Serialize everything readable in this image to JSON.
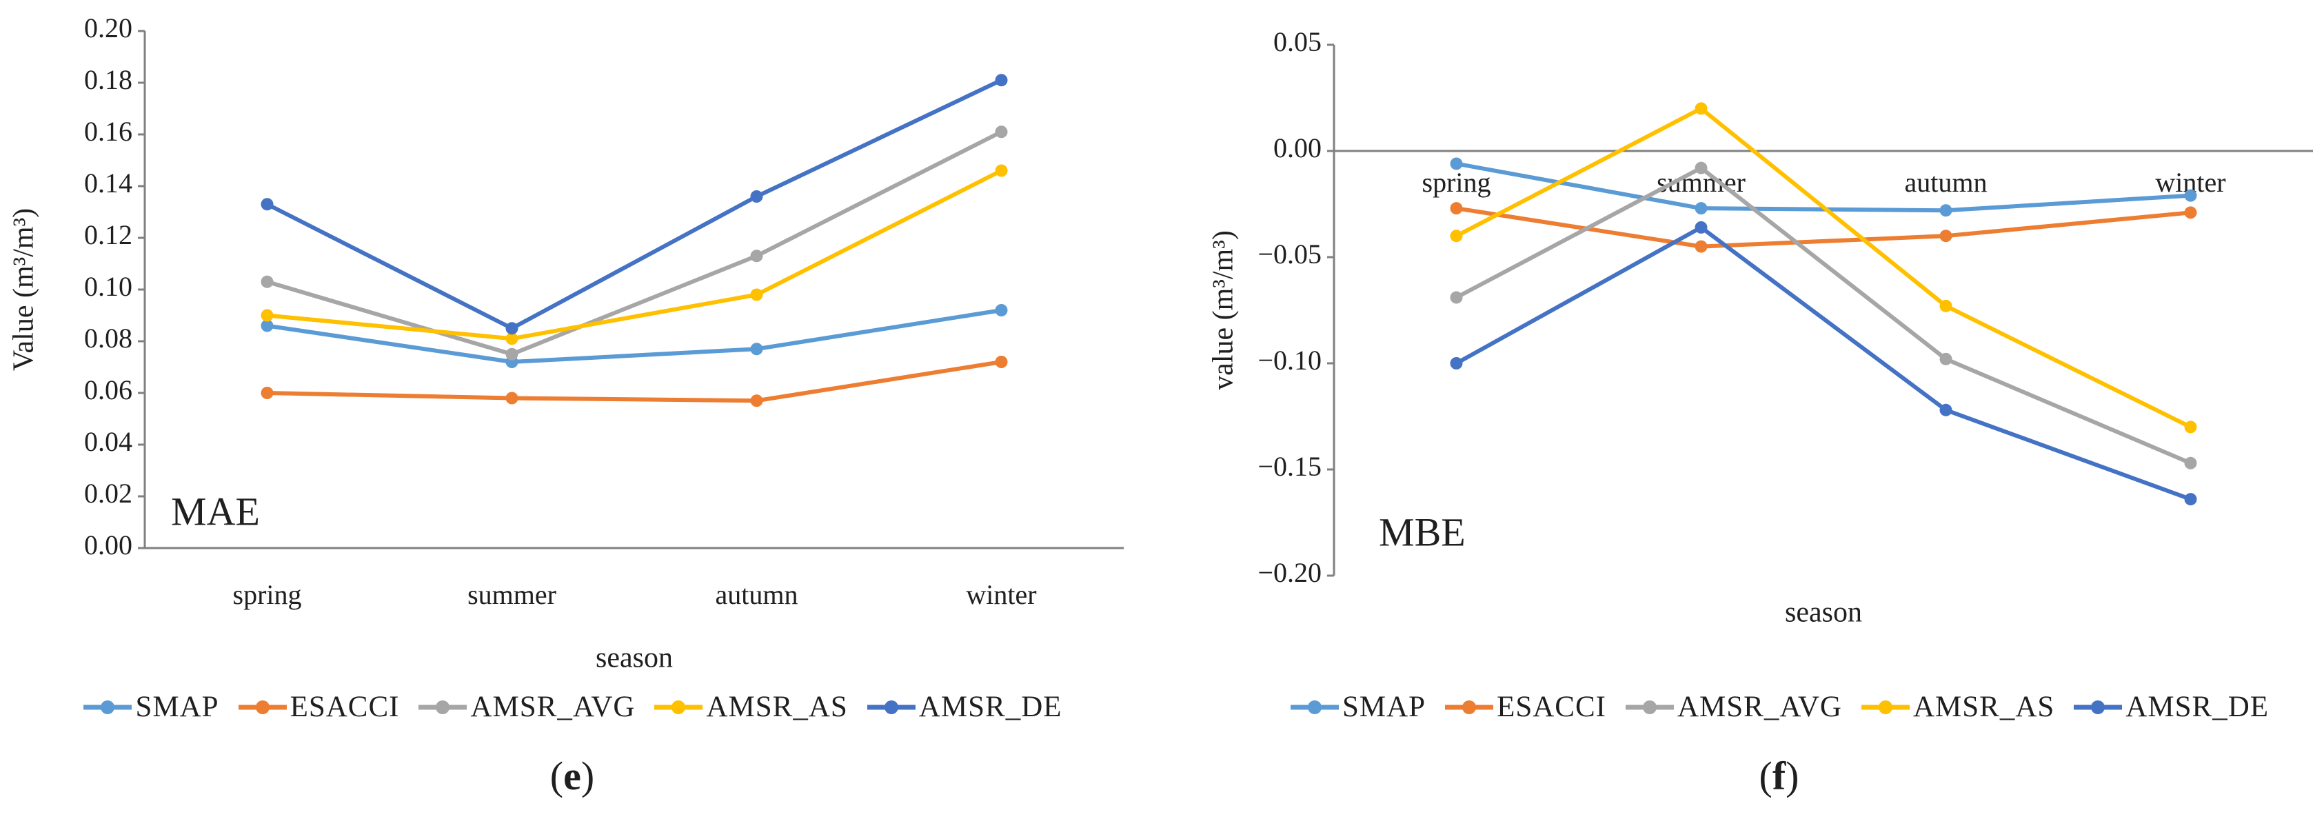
{
  "colors": {
    "axis": "#808080",
    "text": "#1f1f1f",
    "background": "#ffffff"
  },
  "chart_data": [
    {
      "type": "line",
      "inner_label": "MAE",
      "panel_open": "(",
      "panel_letter": "e",
      "panel_close": ")",
      "xlabel": "season",
      "ylabel": "Value (m³/m³)",
      "categories": [
        "spring",
        "summer",
        "autumn",
        "winter"
      ],
      "ylim": [
        0.0,
        0.2
      ],
      "ytick_step": 0.02,
      "y_decimals": 2,
      "grid": false,
      "zero_axis_line": false,
      "x_labels_inside": false,
      "legend_position": "bottom",
      "series": [
        {
          "name": "SMAP",
          "color": "#5B9BD5",
          "values": [
            0.086,
            0.072,
            0.077,
            0.092
          ]
        },
        {
          "name": "ESACCI",
          "color": "#ED7D31",
          "values": [
            0.06,
            0.058,
            0.057,
            0.072
          ]
        },
        {
          "name": "AMSR_AVG",
          "color": "#A6A6A6",
          "values": [
            0.103,
            0.075,
            0.113,
            0.161
          ]
        },
        {
          "name": "AMSR_AS",
          "color": "#FFC000",
          "values": [
            0.09,
            0.081,
            0.098,
            0.146
          ]
        },
        {
          "name": "AMSR_DE",
          "color": "#4472C4",
          "values": [
            0.133,
            0.085,
            0.136,
            0.181
          ]
        }
      ]
    },
    {
      "type": "line",
      "inner_label": "MBE",
      "panel_open": "(",
      "panel_letter": "f",
      "panel_close": ")",
      "xlabel": "season",
      "ylabel": "value (m³/m³)",
      "categories": [
        "spring",
        "summer",
        "autumn",
        "winter"
      ],
      "ylim": [
        -0.2,
        0.05
      ],
      "ytick_step": 0.05,
      "y_decimals": 2,
      "grid": false,
      "zero_axis_line": true,
      "x_labels_inside": true,
      "legend_position": "bottom",
      "series": [
        {
          "name": "SMAP",
          "color": "#5B9BD5",
          "values": [
            -0.006,
            -0.027,
            -0.028,
            -0.021
          ]
        },
        {
          "name": "ESACCI",
          "color": "#ED7D31",
          "values": [
            -0.027,
            -0.045,
            -0.04,
            -0.029
          ]
        },
        {
          "name": "AMSR_AVG",
          "color": "#A6A6A6",
          "values": [
            -0.069,
            -0.008,
            -0.098,
            -0.147
          ]
        },
        {
          "name": "AMSR_AS",
          "color": "#FFC000",
          "values": [
            -0.04,
            0.02,
            -0.073,
            -0.13
          ]
        },
        {
          "name": "AMSR_DE",
          "color": "#4472C4",
          "values": [
            -0.1,
            -0.036,
            -0.122,
            -0.164
          ]
        }
      ]
    }
  ]
}
